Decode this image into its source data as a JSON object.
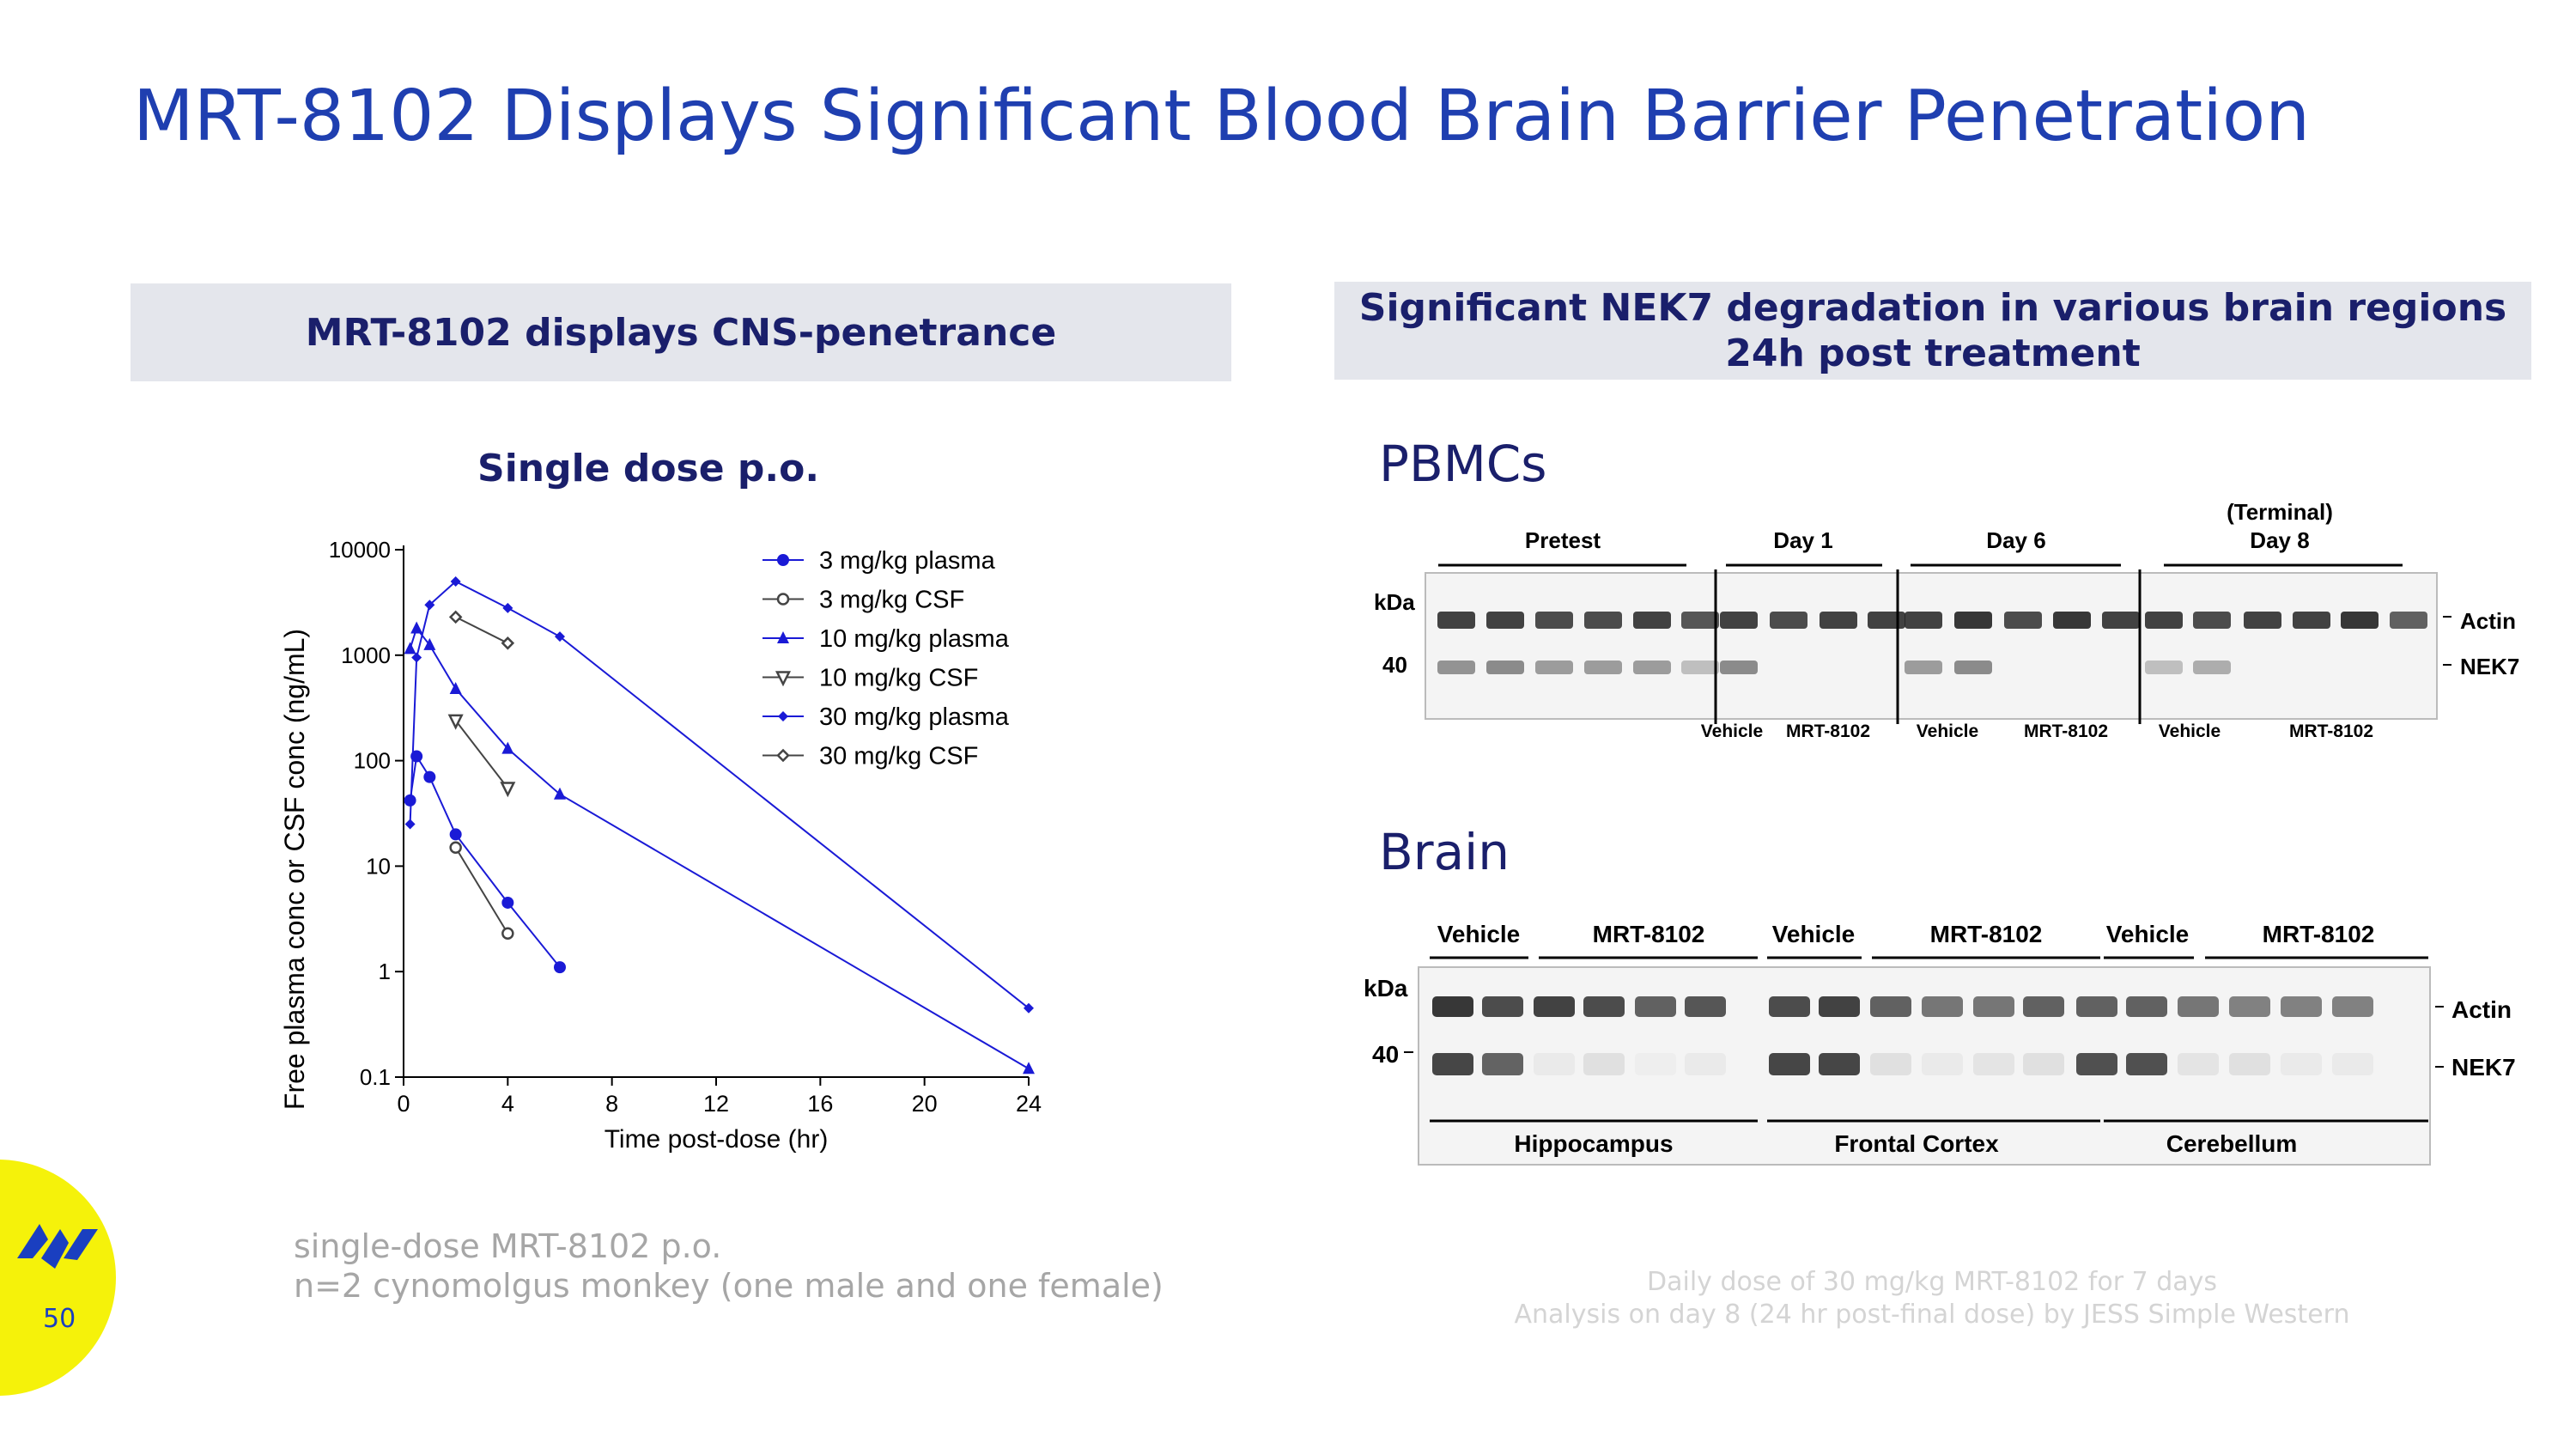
{
  "title": "MRT-8102 Displays Significant Blood Brain Barrier Penetration",
  "left_banner": "MRT-8102 displays CNS-penetrance",
  "right_banner": {
    "line1": "Significant NEK7 degradation in various brain regions",
    "line2": "24h post treatment"
  },
  "subtitle": "Single dose p.o.",
  "left_notes": {
    "line1": "single-dose MRT-8102 p.o.",
    "line2": "n=2 cynomolgus monkey (one male and one female)"
  },
  "right_notes": {
    "line1": "Daily dose of 30 mg/kg MRT-8102 for 7 days",
    "line2": "Analysis on day 8 (24 hr post-final dose) by JESS Simple Western"
  },
  "page_number": "50",
  "colors": {
    "blue_series": "#1a1ad6",
    "gray_series": "#444444",
    "title": "#1f3fb0",
    "banner_text": "#1a1f6b"
  },
  "chart_data": {
    "type": "line",
    "yscale": "log",
    "xlabel": "Time post-dose (hr)",
    "ylabel": "Free plasma conc or CSF conc (ng/mL)",
    "xlim": [
      0,
      24
    ],
    "ylim": [
      0.1,
      10000
    ],
    "xticks": [
      0,
      4,
      8,
      12,
      16,
      20,
      24
    ],
    "yticks": [
      {
        "value": 0.1,
        "label": "0.1"
      },
      {
        "value": 1,
        "label": "1"
      },
      {
        "value": 10,
        "label": "10"
      },
      {
        "value": 100,
        "label": "100"
      },
      {
        "value": 1000,
        "label": "1000"
      },
      {
        "value": 10000,
        "label": "10000"
      }
    ],
    "series": [
      {
        "name": "3 mg/kg plasma",
        "color": "#1a1ad6",
        "marker": "circle-filled",
        "x": [
          0.25,
          0.5,
          1,
          2,
          4,
          6
        ],
        "y": [
          42,
          110,
          70,
          20,
          4.5,
          1.1
        ]
      },
      {
        "name": "3 mg/kg CSF",
        "color": "#444444",
        "marker": "circle-open",
        "x": [
          2,
          4
        ],
        "y": [
          15,
          2.3
        ]
      },
      {
        "name": "10 mg/kg plasma",
        "color": "#1a1ad6",
        "marker": "triangle-up",
        "x": [
          0.25,
          0.5,
          1,
          2,
          4,
          6,
          24
        ],
        "y": [
          1150,
          1800,
          1250,
          480,
          130,
          48,
          0.12
        ]
      },
      {
        "name": "10 mg/kg CSF",
        "color": "#444444",
        "marker": "triangle-down",
        "x": [
          2,
          4
        ],
        "y": [
          240,
          55
        ]
      },
      {
        "name": "30 mg/kg plasma",
        "color": "#1a1ad6",
        "marker": "diamond-filled",
        "x": [
          0.25,
          0.5,
          1,
          2,
          4,
          6,
          24
        ],
        "y": [
          25,
          950,
          3000,
          5000,
          2800,
          1500,
          0.45
        ]
      },
      {
        "name": "30 mg/kg CSF",
        "color": "#444444",
        "marker": "diamond-open",
        "x": [
          2,
          4
        ],
        "y": [
          2300,
          1300
        ]
      }
    ]
  },
  "pbmc": {
    "title": "PBMCs",
    "group_headers": [
      "Pretest",
      "Day 1",
      "Day 6",
      "(Terminal)",
      "Day 8"
    ],
    "treatment_labels": [
      "Vehicle",
      "MRT-8102",
      "Vehicle",
      "MRT-8102",
      "Vehicle",
      "MRT-8102"
    ],
    "kda_label": "kDa",
    "mw_marker": "40",
    "band_labels": [
      "Actin",
      "NEK7"
    ]
  },
  "brain": {
    "title": "Brain",
    "group_headers": [
      "Vehicle",
      "MRT-8102",
      "Vehicle",
      "MRT-8102",
      "Vehicle",
      "MRT-8102"
    ],
    "regions": [
      "Hippocampus",
      "Frontal Cortex",
      "Cerebellum"
    ],
    "kda_label": "kDa",
    "mw_marker": "40",
    "band_labels": [
      "Actin",
      "NEK7"
    ]
  }
}
